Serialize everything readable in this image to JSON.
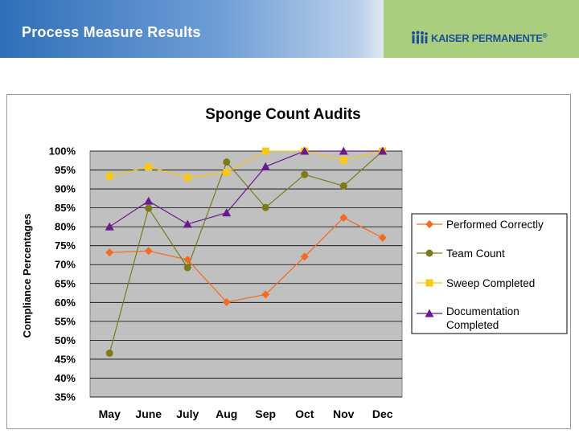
{
  "header": {
    "title": "Process Measure Results"
  },
  "logo": {
    "text": "KAISER PERMANENTE",
    "mark": "®"
  },
  "colors": {
    "header_gradient_start": "#2f6fb8",
    "logo_panel": "#a9cf7e",
    "plot_background": "#c0c0c0"
  },
  "chart_data": {
    "type": "line",
    "title": "Sponge Count Audits",
    "xlabel": "",
    "ylabel": "Compliance Percentages",
    "ylim": [
      35,
      100
    ],
    "y_ticks": [
      "35%",
      "40%",
      "45%",
      "50%",
      "55%",
      "60%",
      "65%",
      "70%",
      "75%",
      "80%",
      "85%",
      "90%",
      "95%",
      "100%"
    ],
    "categories": [
      "May",
      "June",
      "July",
      "Aug",
      "Sep",
      "Oct",
      "Nov",
      "Dec"
    ],
    "grid": true,
    "legend_position": "right",
    "series": [
      {
        "name": "Performed Correctly",
        "color": "#f26b21",
        "marker": "diamond",
        "values": [
          73.2,
          73.6,
          71.3,
          60.1,
          62.1,
          72.1,
          82.4,
          77.1
        ]
      },
      {
        "name": "Team Count",
        "color": "#7b7b1c",
        "marker": "circle",
        "values": [
          46.6,
          84.9,
          69.2,
          97.1,
          85.1,
          93.8,
          90.8,
          100
        ]
      },
      {
        "name": "Sweep Completed",
        "color": "#f7c81a",
        "marker": "square",
        "values": [
          93.4,
          95.8,
          93.0,
          94.4,
          100,
          100,
          97.6,
          100
        ]
      },
      {
        "name": "Documentation Completed",
        "color": "#6b1a8c",
        "marker": "triangle",
        "values": [
          80.0,
          86.8,
          80.7,
          83.7,
          95.9,
          100,
          100,
          100
        ]
      }
    ]
  }
}
